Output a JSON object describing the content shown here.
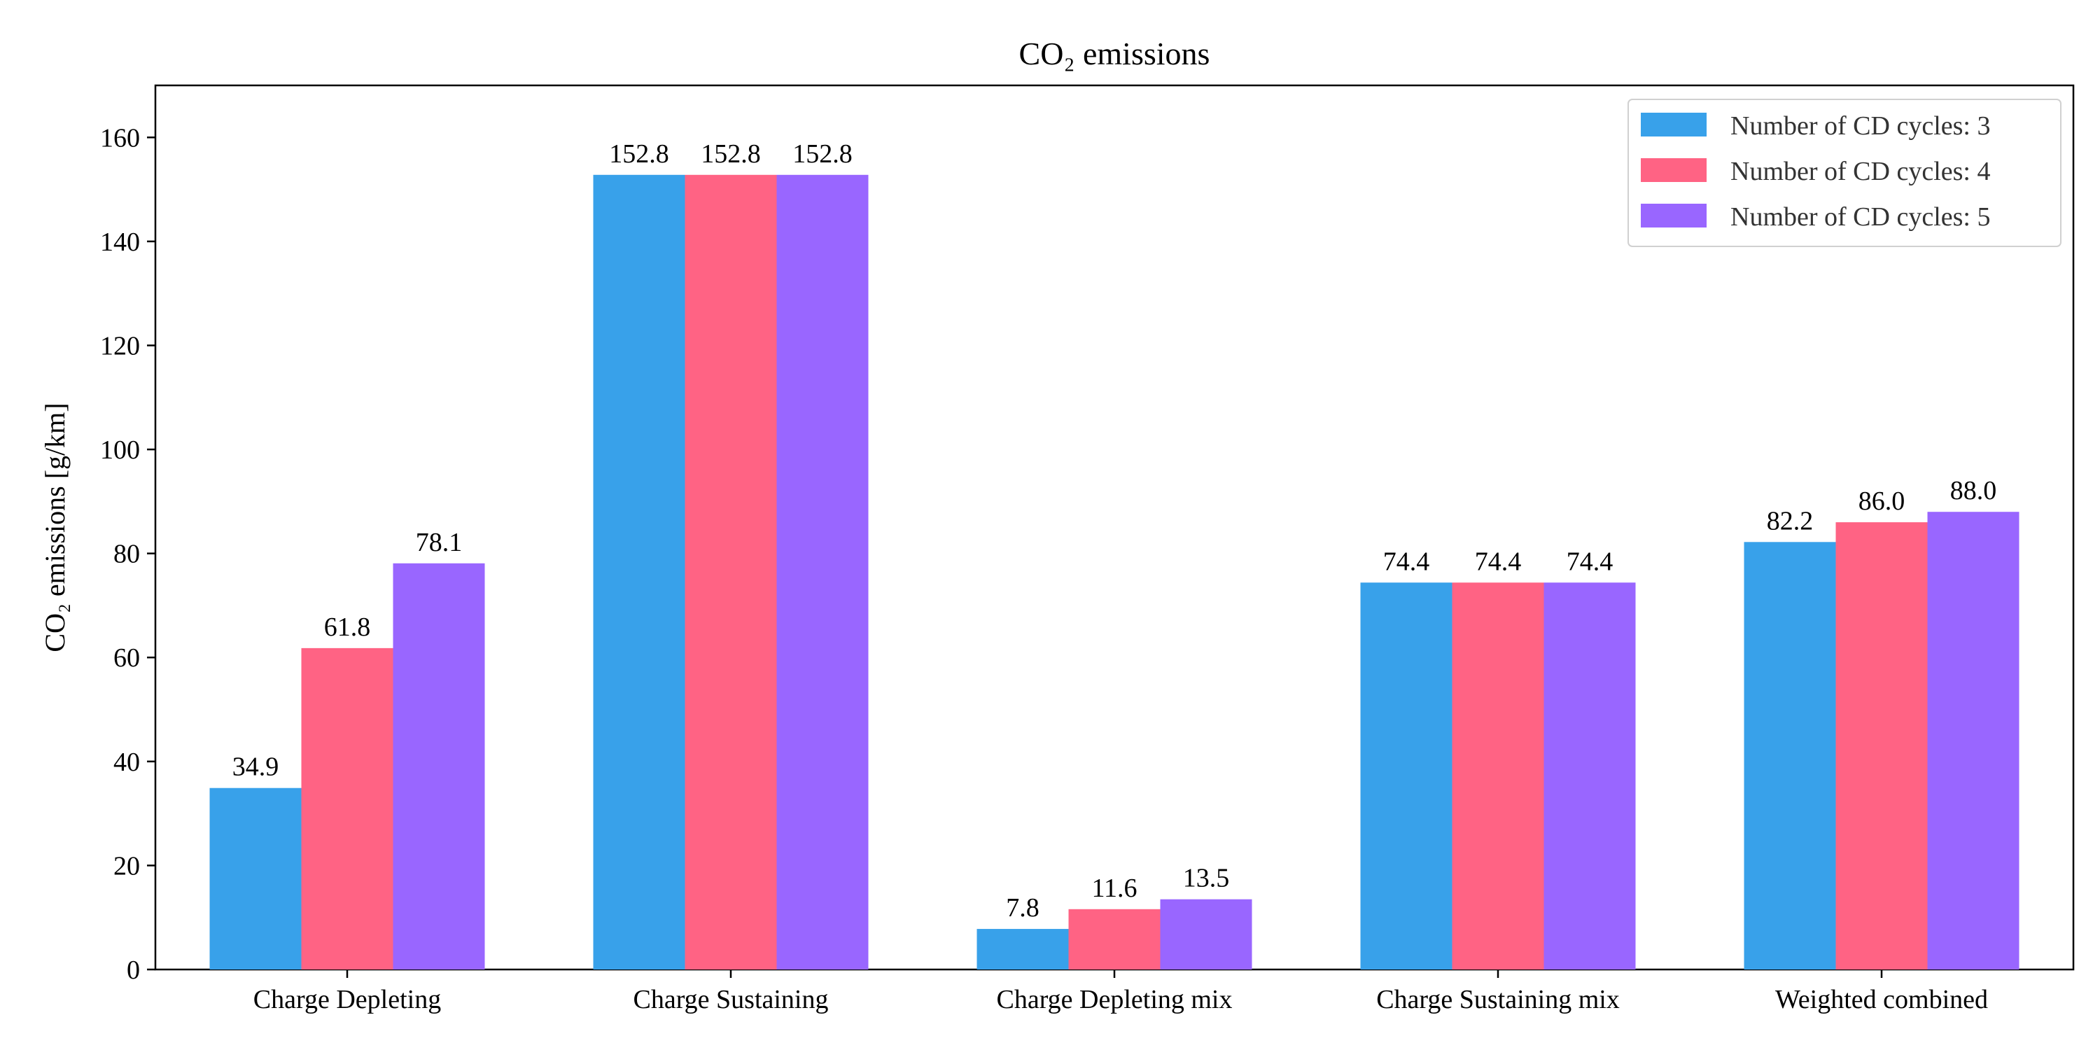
{
  "chart_data": {
    "type": "bar",
    "title": "CO₂ emissions",
    "ylabel": "CO₂ emissions [g/km]",
    "xlabel": "",
    "ylim": [
      0,
      170
    ],
    "yticks": [
      0,
      20,
      40,
      60,
      80,
      100,
      120,
      140,
      160
    ],
    "grid": false,
    "legend_position": "top-right",
    "categories": [
      "Charge Depleting",
      "Charge Sustaining",
      "Charge Depleting mix",
      "Charge Sustaining mix",
      "Weighted combined"
    ],
    "series": [
      {
        "name": "Number of CD cycles: 3",
        "color": "#38a1ea",
        "values": [
          34.9,
          152.8,
          7.8,
          74.4,
          82.2
        ],
        "labels": [
          "34.9",
          "152.8",
          "7.8",
          "74.4",
          "82.2"
        ]
      },
      {
        "name": "Number of CD cycles: 4",
        "color": "#ff6384",
        "values": [
          61.8,
          152.8,
          11.6,
          74.4,
          86.0
        ],
        "labels": [
          "61.8",
          "152.8",
          "11.6",
          "74.4",
          "86.0"
        ]
      },
      {
        "name": "Number of CD cycles: 5",
        "color": "#9966ff",
        "values": [
          78.1,
          152.8,
          13.5,
          74.4,
          88.0
        ],
        "labels": [
          "78.1",
          "152.8",
          "13.5",
          "74.4",
          "88.0"
        ]
      }
    ]
  }
}
